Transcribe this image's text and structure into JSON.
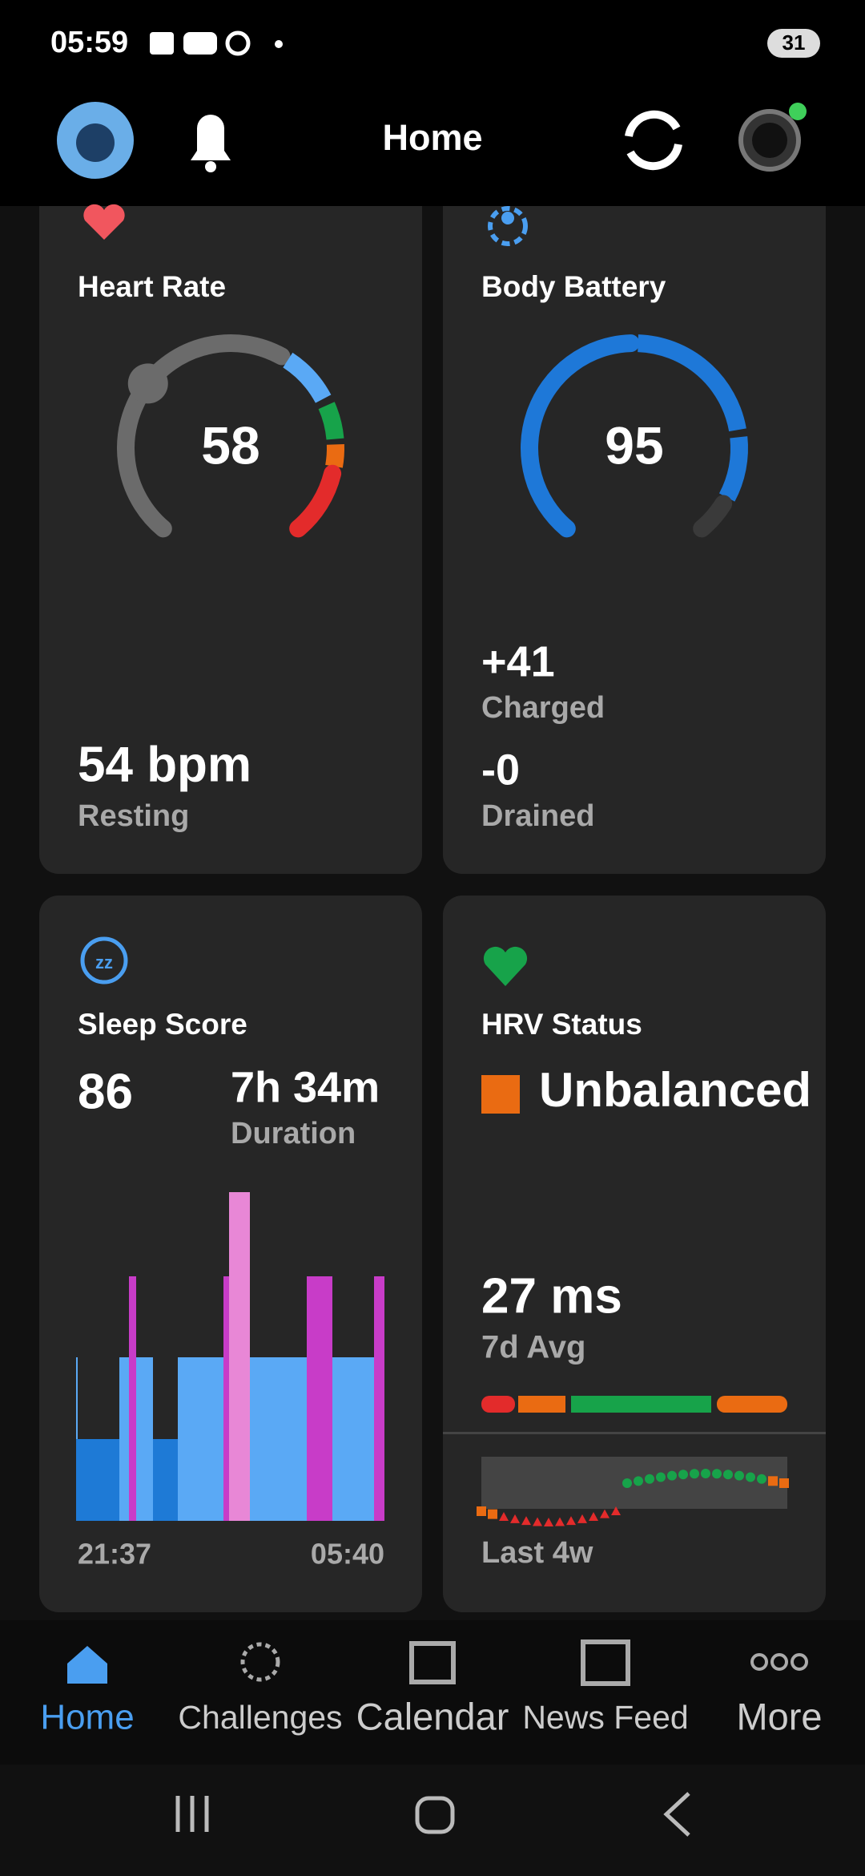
{
  "status_bar": {
    "time": "05:59",
    "battery": "31"
  },
  "header": {
    "title": "Home"
  },
  "cards": {
    "heart_rate": {
      "title": "Heart Rate",
      "current": "58",
      "resting_value": "54 bpm",
      "resting_label": "Resting"
    },
    "body_battery": {
      "title": "Body Battery",
      "current": "95",
      "charged_value": "+41",
      "charged_label": "Charged",
      "drained_value": "-0",
      "drained_label": "Drained"
    },
    "sleep": {
      "title": "Sleep Score",
      "score": "86",
      "duration_value": "7h 34m",
      "duration_label": "Duration",
      "start": "21:37",
      "end": "05:40"
    },
    "hrv": {
      "title": "HRV Status",
      "status": "Unbalanced",
      "avg_value": "27 ms",
      "avg_label": "7d Avg",
      "range_label": "Last 4w"
    }
  },
  "nav": [
    "Home",
    "Challenges",
    "Calendar",
    "News Feed",
    "More"
  ]
}
